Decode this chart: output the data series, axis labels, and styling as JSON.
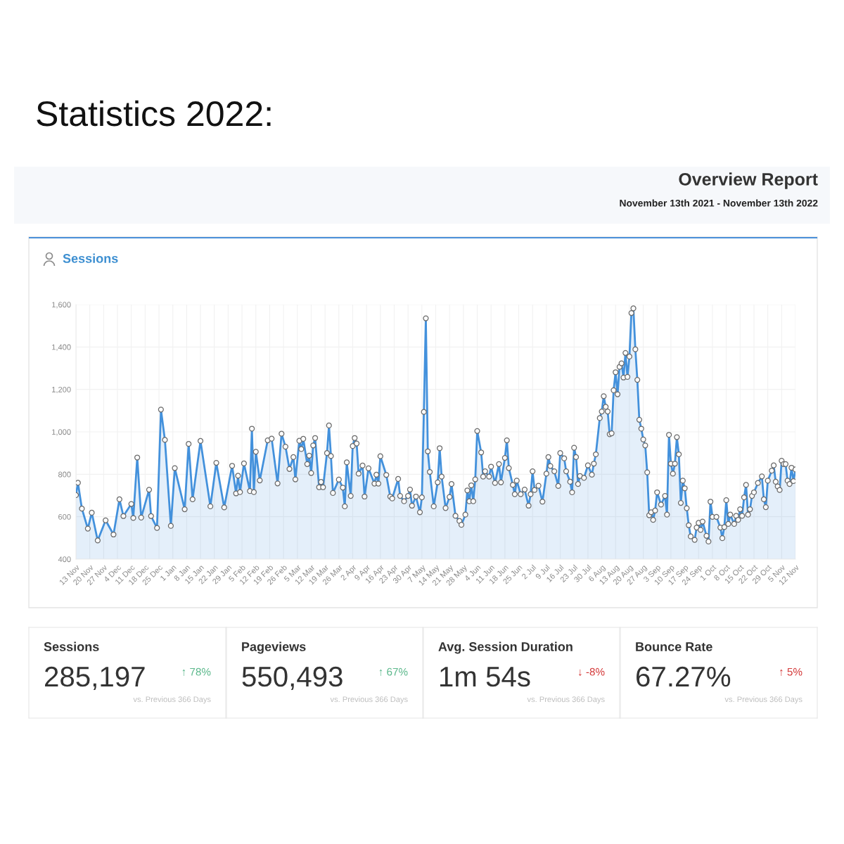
{
  "chart_data": [
    {
      "type": "other",
      "title": "Statistics 2022:",
      "subtitle": "Overview Report",
      "annotations": [
        "November 13th 2021 - November 13th 2022"
      ]
    },
    {
      "type": "area",
      "title": "Sessions",
      "color": "#4391dc",
      "marker": "circle",
      "line_style": "solid",
      "grid": true,
      "x": [
        "2021-11-13",
        "2021-11-14",
        "2021-11-16",
        "2021-11-19",
        "2021-11-21",
        "2021-11-24",
        "2021-11-28",
        "2021-12-02",
        "2021-12-05",
        "2021-12-07",
        "2021-12-11",
        "2021-12-12",
        "2021-12-14",
        "2021-12-16",
        "2021-12-20",
        "2021-12-21",
        "2021-12-24",
        "2021-12-26",
        "2021-12-28",
        "2021-12-31",
        "2022-01-02",
        "2022-01-07",
        "2022-01-09",
        "2022-01-11",
        "2022-01-15",
        "2022-01-20",
        "2022-01-23",
        "2022-01-27",
        "2022-01-31",
        "2022-02-02",
        "2022-02-03",
        "2022-02-04",
        "2022-02-06",
        "2022-02-09",
        "2022-02-10",
        "2022-02-11",
        "2022-02-12",
        "2022-02-14",
        "2022-02-18",
        "2022-02-20",
        "2022-02-23",
        "2022-02-25",
        "2022-02-27",
        "2022-03-01",
        "2022-03-03",
        "2022-03-04",
        "2022-03-06",
        "2022-03-07",
        "2022-03-08",
        "2022-03-10",
        "2022-03-11",
        "2022-03-12",
        "2022-03-13",
        "2022-03-14",
        "2022-03-16",
        "2022-03-17",
        "2022-03-18",
        "2022-03-20",
        "2022-03-21",
        "2022-03-22",
        "2022-03-23",
        "2022-03-26",
        "2022-03-28",
        "2022-03-29",
        "2022-03-30",
        "2022-04-01",
        "2022-04-02",
        "2022-04-03",
        "2022-04-04",
        "2022-04-05",
        "2022-04-07",
        "2022-04-08",
        "2022-04-10",
        "2022-04-13",
        "2022-04-14",
        "2022-04-15",
        "2022-04-16",
        "2022-04-19",
        "2022-04-21",
        "2022-04-22",
        "2022-04-25",
        "2022-04-26",
        "2022-04-28",
        "2022-04-30",
        "2022-05-01",
        "2022-05-02",
        "2022-05-04",
        "2022-05-06",
        "2022-05-07",
        "2022-05-08",
        "2022-05-09",
        "2022-05-10",
        "2022-05-11",
        "2022-05-13",
        "2022-05-15",
        "2022-05-16",
        "2022-05-17",
        "2022-05-19",
        "2022-05-21",
        "2022-05-22",
        "2022-05-24",
        "2022-05-26",
        "2022-05-27",
        "2022-05-29",
        "2022-05-30",
        "2022-05-31",
        "2022-06-01",
        "2022-06-02",
        "2022-06-03",
        "2022-06-04",
        "2022-06-06",
        "2022-06-07",
        "2022-06-08",
        "2022-06-10",
        "2022-06-11",
        "2022-06-13",
        "2022-06-15",
        "2022-06-16",
        "2022-06-18",
        "2022-06-19",
        "2022-06-20",
        "2022-06-22",
        "2022-06-23",
        "2022-06-24",
        "2022-06-26",
        "2022-06-28",
        "2022-06-30",
        "2022-07-01",
        "2022-07-02",
        "2022-07-03",
        "2022-07-05",
        "2022-07-07",
        "2022-07-09",
        "2022-07-10",
        "2022-07-11",
        "2022-07-13",
        "2022-07-15",
        "2022-07-16",
        "2022-07-18",
        "2022-07-19",
        "2022-07-21",
        "2022-07-22",
        "2022-07-23",
        "2022-07-24",
        "2022-07-25",
        "2022-07-26",
        "2022-07-28",
        "2022-07-30",
        "2022-08-01",
        "2022-08-02",
        "2022-08-03",
        "2022-08-05",
        "2022-08-06",
        "2022-08-07",
        "2022-08-08",
        "2022-08-09",
        "2022-08-10",
        "2022-08-11",
        "2022-08-12",
        "2022-08-13",
        "2022-08-14",
        "2022-08-15",
        "2022-08-16",
        "2022-08-17",
        "2022-08-18",
        "2022-08-19",
        "2022-08-20",
        "2022-08-21",
        "2022-08-22",
        "2022-08-23",
        "2022-08-24",
        "2022-08-25",
        "2022-08-26",
        "2022-08-27",
        "2022-08-28",
        "2022-08-29",
        "2022-08-30",
        "2022-08-31",
        "2022-09-01",
        "2022-09-02",
        "2022-09-03",
        "2022-09-05",
        "2022-09-07",
        "2022-09-08",
        "2022-09-09",
        "2022-09-10",
        "2022-09-11",
        "2022-09-12",
        "2022-09-13",
        "2022-09-14",
        "2022-09-15",
        "2022-09-16",
        "2022-09-17",
        "2022-09-18",
        "2022-09-19",
        "2022-09-20",
        "2022-09-22",
        "2022-09-23",
        "2022-09-24",
        "2022-09-25",
        "2022-09-26",
        "2022-09-28",
        "2022-09-29",
        "2022-09-30",
        "2022-10-01",
        "2022-10-03",
        "2022-10-05",
        "2022-10-06",
        "2022-10-07",
        "2022-10-08",
        "2022-10-09",
        "2022-10-10",
        "2022-10-12",
        "2022-10-13",
        "2022-10-14",
        "2022-10-15",
        "2022-10-16",
        "2022-10-17",
        "2022-10-18",
        "2022-10-19",
        "2022-10-20",
        "2022-10-21",
        "2022-10-22",
        "2022-10-24",
        "2022-10-26",
        "2022-10-27",
        "2022-10-28",
        "2022-10-29",
        "2022-10-31",
        "2022-11-01",
        "2022-11-02",
        "2022-11-03",
        "2022-11-04",
        "2022-11-05",
        "2022-11-06",
        "2022-11-07",
        "2022-11-08",
        "2022-11-09",
        "2022-11-10",
        "2022-11-11",
        "2022-11-12"
      ],
      "values": [
        702,
        760,
        638,
        544,
        619,
        488,
        583,
        516,
        682,
        603,
        660,
        594,
        879,
        596,
        727,
        603,
        547,
        1105,
        962,
        557,
        829,
        635,
        943,
        682,
        957,
        649,
        854,
        644,
        840,
        710,
        793,
        716,
        851,
        721,
        1015,
        716,
        906,
        771,
        960,
        968,
        757,
        991,
        930,
        825,
        881,
        776,
        958,
        919,
        967,
        848,
        888,
        806,
        936,
        971,
        739,
        764,
        739,
        900,
        1030,
        886,
        712,
        775,
        737,
        649,
        856,
        698,
        933,
        971,
        945,
        803,
        841,
        695,
        828,
        756,
        798,
        756,
        885,
        797,
        695,
        686,
        778,
        698,
        673,
        698,
        728,
        652,
        695,
        621,
        691,
        1094,
        1535,
        908,
        811,
        649,
        762,
        923,
        789,
        641,
        693,
        754,
        604,
        580,
        562,
        610,
        724,
        673,
        748,
        673,
        776,
        1004,
        903,
        789,
        814,
        789,
        836,
        759,
        848,
        762,
        877,
        960,
        829,
        750,
        706,
        770,
        706,
        728,
        652,
        706,
        814,
        726,
        746,
        671,
        803,
        881,
        839,
        814,
        745,
        900,
        875,
        814,
        765,
        715,
        925,
        881,
        754,
        792,
        783,
        842,
        798,
        850,
        894,
        1065,
        1096,
        1168,
        1118,
        1096,
        989,
        993,
        1196,
        1281,
        1177,
        1306,
        1323,
        1256,
        1372,
        1259,
        1355,
        1560,
        1582,
        1389,
        1245,
        1057,
        1015,
        964,
        936,
        809,
        607,
        621,
        585,
        629,
        715,
        657,
        698,
        610,
        986,
        850,
        803,
        850,
        975,
        894,
        665,
        770,
        734,
        640,
        560,
        507,
        491,
        549,
        571,
        538,
        577,
        510,
        483,
        671,
        599,
        599,
        549,
        499,
        551,
        678,
        566,
        610,
        566,
        604,
        585,
        635,
        604,
        691,
        750,
        610,
        635,
        698,
        715,
        759,
        790,
        682,
        645,
        770,
        817,
        842,
        765,
        743,
        726,
        864,
        848,
        848,
        770,
        754,
        831,
        768,
        823
      ],
      "xlim": [
        "2021-11-13",
        "2022-11-12"
      ],
      "xticks": [
        {
          "value": "2021-11-13",
          "label": "13 Nov"
        },
        {
          "value": "2021-11-20",
          "label": "20 Nov"
        },
        {
          "value": "2021-11-27",
          "label": "27 Nov"
        },
        {
          "value": "2021-12-04",
          "label": "4 Dec"
        },
        {
          "value": "2021-12-11",
          "label": "11 Dec"
        },
        {
          "value": "2021-12-18",
          "label": "18 Dec"
        },
        {
          "value": "2021-12-25",
          "label": "25 Dec"
        },
        {
          "value": "2022-01-01",
          "label": "1 Jan"
        },
        {
          "value": "2022-01-08",
          "label": "8 Jan"
        },
        {
          "value": "2022-01-15",
          "label": "15 Jan"
        },
        {
          "value": "2022-01-22",
          "label": "22 Jan"
        },
        {
          "value": "2022-01-29",
          "label": "29 Jan"
        },
        {
          "value": "2022-02-05",
          "label": "5 Feb"
        },
        {
          "value": "2022-02-12",
          "label": "12 Feb"
        },
        {
          "value": "2022-02-19",
          "label": "19 Feb"
        },
        {
          "value": "2022-02-26",
          "label": "26 Feb"
        },
        {
          "value": "2022-03-05",
          "label": "5 Mar"
        },
        {
          "value": "2022-03-12",
          "label": "12 Mar"
        },
        {
          "value": "2022-03-19",
          "label": "19 Mar"
        },
        {
          "value": "2022-03-26",
          "label": "26 Mar"
        },
        {
          "value": "2022-04-02",
          "label": "2 Apr"
        },
        {
          "value": "2022-04-09",
          "label": "9 Apr"
        },
        {
          "value": "2022-04-16",
          "label": "16 Apr"
        },
        {
          "value": "2022-04-23",
          "label": "23 Apr"
        },
        {
          "value": "2022-04-30",
          "label": "30 Apr"
        },
        {
          "value": "2022-05-07",
          "label": "7 May"
        },
        {
          "value": "2022-05-14",
          "label": "14 May"
        },
        {
          "value": "2022-05-21",
          "label": "21 May"
        },
        {
          "value": "2022-05-28",
          "label": "28 May"
        },
        {
          "value": "2022-06-04",
          "label": "4 Jun"
        },
        {
          "value": "2022-06-11",
          "label": "11 Jun"
        },
        {
          "value": "2022-06-18",
          "label": "18 Jun"
        },
        {
          "value": "2022-06-25",
          "label": "25 Jun"
        },
        {
          "value": "2022-07-02",
          "label": "2 Jul"
        },
        {
          "value": "2022-07-09",
          "label": "9 Jul"
        },
        {
          "value": "2022-07-16",
          "label": "16 Jul"
        },
        {
          "value": "2022-07-23",
          "label": "23 Jul"
        },
        {
          "value": "2022-07-30",
          "label": "30 Jul"
        },
        {
          "value": "2022-08-06",
          "label": "6 Aug"
        },
        {
          "value": "2022-08-13",
          "label": "13 Aug"
        },
        {
          "value": "2022-08-20",
          "label": "20 Aug"
        },
        {
          "value": "2022-08-27",
          "label": "27 Aug"
        },
        {
          "value": "2022-09-03",
          "label": "3 Sep"
        },
        {
          "value": "2022-09-10",
          "label": "10 Sep"
        },
        {
          "value": "2022-09-17",
          "label": "17 Sep"
        },
        {
          "value": "2022-09-24",
          "label": "24 Sep"
        },
        {
          "value": "2022-10-01",
          "label": "1 Oct"
        },
        {
          "value": "2022-10-08",
          "label": "8 Oct"
        },
        {
          "value": "2022-10-15",
          "label": "15 Oct"
        },
        {
          "value": "2022-10-22",
          "label": "22 Oct"
        },
        {
          "value": "2022-10-29",
          "label": "29 Oct"
        },
        {
          "value": "2022-11-05",
          "label": "5 Nov"
        },
        {
          "value": "2022-11-12",
          "label": "12 Nov"
        }
      ],
      "ylim": [
        400,
        1600
      ],
      "yticks": [
        400,
        600,
        800,
        {
          "value": 1000,
          "label": "1,000"
        },
        {
          "value": 1200,
          "label": "1,200"
        },
        {
          "value": 1400,
          "label": "1,400"
        },
        {
          "value": 1600,
          "label": "1,600"
        }
      ]
    },
    {
      "type": "other",
      "title": "Sessions",
      "color": "#5cb88c",
      "annotations": [
        "285,197",
        "↑ 78%",
        "vs. Previous 366 Days"
      ]
    },
    {
      "type": "other",
      "title": "Pageviews",
      "color": "#5cb88c",
      "annotations": [
        "550,493",
        "↑ 67%",
        "vs. Previous 366 Days"
      ]
    },
    {
      "type": "other",
      "title": "Avg. Session Duration",
      "color": "#d43b3b",
      "annotations": [
        "1m 54s",
        "↓ -8%",
        "vs. Previous 366 Days"
      ]
    },
    {
      "type": "other",
      "title": "Bounce Rate",
      "color": "#d43b3b",
      "annotations": [
        "67.27%",
        "↑ 5%",
        "vs. Previous 366 Days"
      ]
    }
  ]
}
